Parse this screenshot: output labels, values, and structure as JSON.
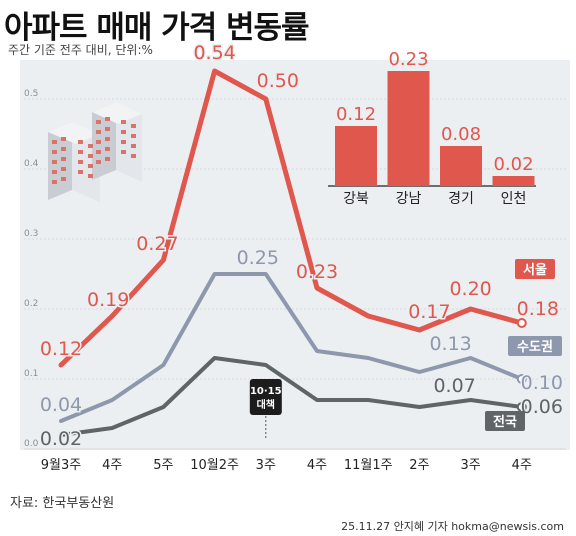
{
  "header": {
    "title": "아파트 매매 가격 변동률",
    "subtitle": "주간 기준 전주 대비, 단위:%"
  },
  "footer": {
    "source": "자료: 한국부동산원",
    "credit": "25.11.27 안지혜 기자 hokma@newsis.com"
  },
  "colors": {
    "seoul": "#e0574d",
    "metro": "#8e98ad",
    "national": "#5f6466",
    "bar": "#e0574d",
    "background_band": "#eceff2"
  },
  "chart_data": [
    {
      "type": "line",
      "x": [
        "9월3주",
        "4주",
        "5주",
        "10월2주",
        "3주",
        "4주",
        "11월1주",
        "2주",
        "3주",
        "4주"
      ],
      "ylim": [
        0,
        0.55
      ],
      "yticks": [
        0,
        0.1,
        0.2,
        0.3,
        0.4,
        0.5
      ],
      "ytick_labels": [
        "0.0",
        "0.1",
        "0.2",
        "0.3",
        "0.4",
        "0.5"
      ],
      "grid": true,
      "series": [
        {
          "name": "서울",
          "values": [
            0.12,
            0.19,
            0.27,
            0.54,
            0.5,
            0.23,
            0.19,
            0.17,
            0.2,
            0.18
          ],
          "labels": [
            "0.12",
            "0.19",
            "0.27",
            "0.54",
            "0.50",
            "0.23",
            "",
            "0.17",
            "0.20",
            "0.18"
          ]
        },
        {
          "name": "수도권",
          "values": [
            0.04,
            0.07,
            0.12,
            0.25,
            0.25,
            0.14,
            0.13,
            0.11,
            0.13,
            0.1
          ],
          "labels": [
            "0.04",
            "",
            "",
            "",
            "0.25",
            "",
            "",
            "",
            "0.13",
            "0.10"
          ]
        },
        {
          "name": "전국",
          "values": [
            0.02,
            0.03,
            0.06,
            0.13,
            0.12,
            0.07,
            0.07,
            0.06,
            0.07,
            0.06
          ],
          "labels": [
            "0.02",
            "",
            "",
            "",
            "",
            "",
            "",
            "",
            "0.07",
            "0.06"
          ]
        }
      ],
      "annotation": {
        "text_line1": "10·15",
        "text_line2": "대책",
        "at_category": "3주"
      }
    },
    {
      "type": "bar",
      "categories": [
        "강북",
        "강남",
        "경기",
        "인천"
      ],
      "values": [
        0.12,
        0.23,
        0.08,
        0.02
      ],
      "value_labels": [
        "0.12",
        "0.23",
        "0.08",
        "0.02"
      ]
    }
  ]
}
